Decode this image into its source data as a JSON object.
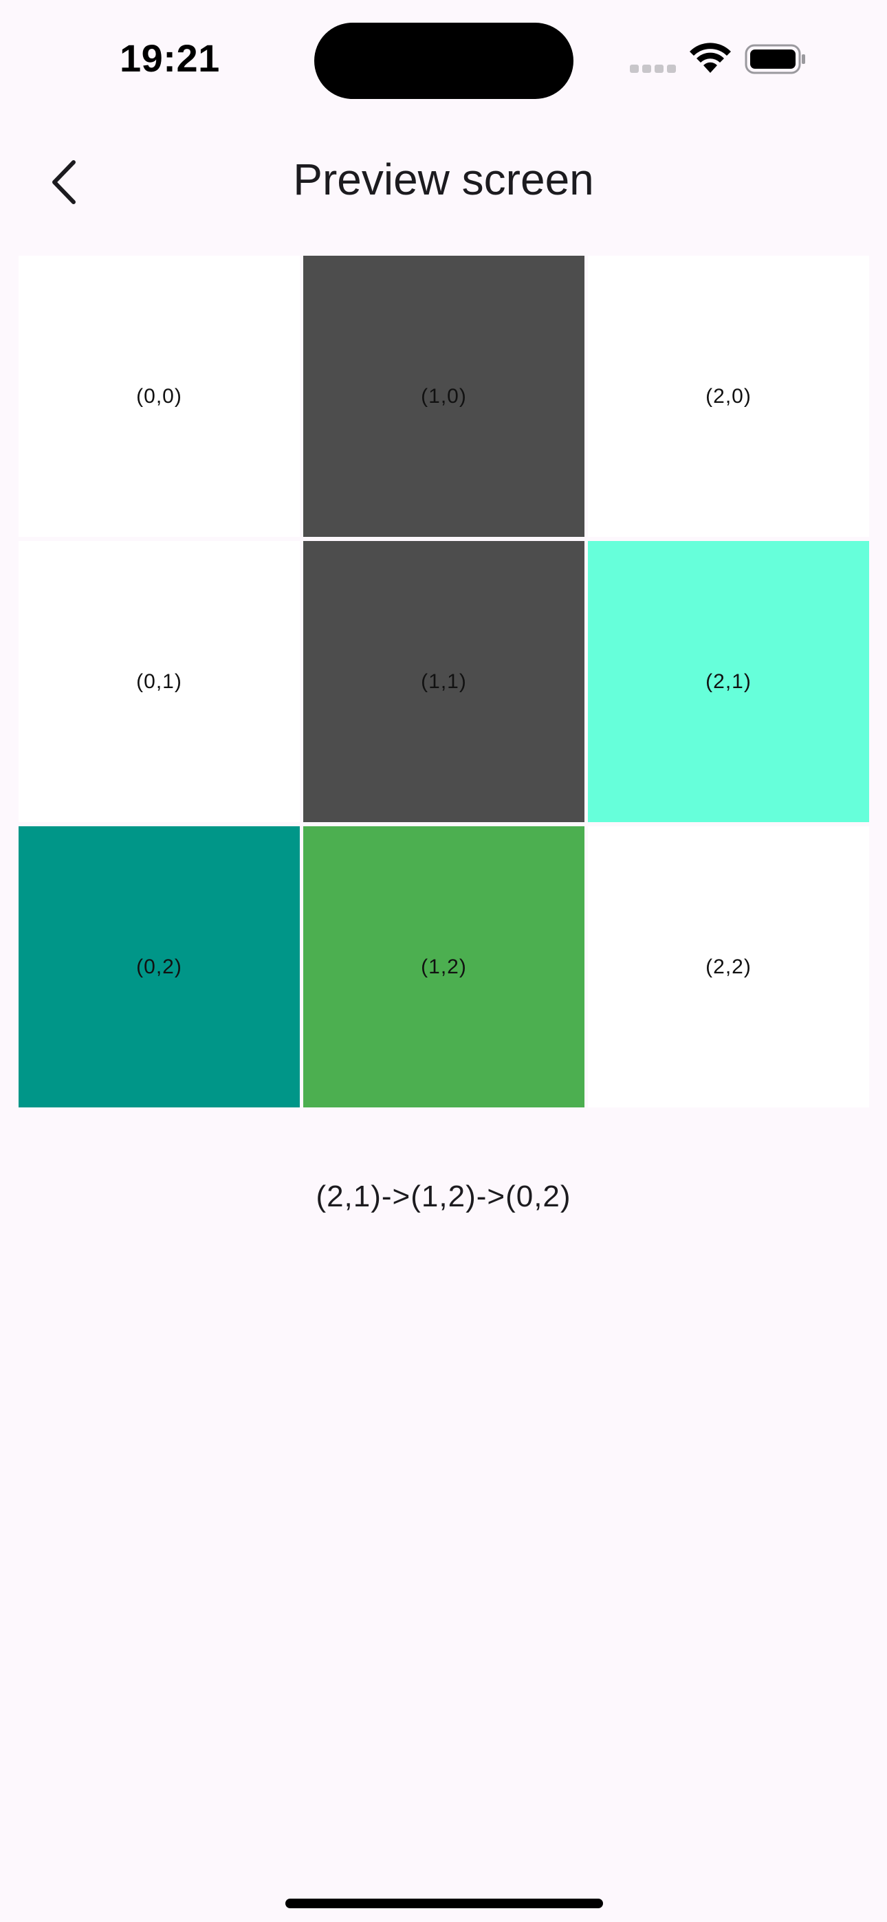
{
  "status_bar": {
    "time": "19:21"
  },
  "header": {
    "title": "Preview screen",
    "back_icon": "chevron-left-icon"
  },
  "grid": {
    "cells": [
      {
        "label": "(0,0)",
        "color": "#ffffff"
      },
      {
        "label": "(1,0)",
        "color": "#4d4d4d"
      },
      {
        "label": "(2,0)",
        "color": "#ffffff"
      },
      {
        "label": "(0,1)",
        "color": "#ffffff"
      },
      {
        "label": "(1,1)",
        "color": "#4d4d4d"
      },
      {
        "label": "(2,1)",
        "color": "#66ffda"
      },
      {
        "label": "(0,2)",
        "color": "#009688"
      },
      {
        "label": "(1,2)",
        "color": "#4caf50"
      },
      {
        "label": "(2,2)",
        "color": "#ffffff"
      }
    ]
  },
  "path": {
    "text": "(2,1)->(1,2)->(0,2)"
  }
}
